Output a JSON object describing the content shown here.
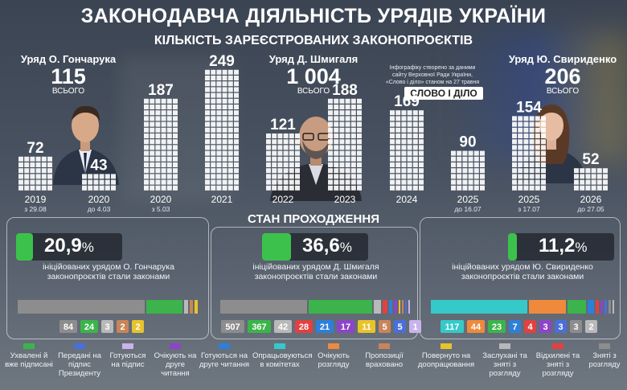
{
  "header": {
    "title": "ЗАКОНОДАВЧА ДІЯЛЬНІСТЬ УРЯДІВ УКРАЇНИ",
    "subtitle": "КІЛЬКІСТЬ ЗАРЕЄСТРОВАНИХ ЗАКОНОПРОЄКТІВ"
  },
  "source": {
    "note": "Інфографіку створено за даними сайту Верховної Ради України, «Слово і діло» станом на 27 травня 2026 року",
    "logo": "СЛОВО І ДІЛО"
  },
  "governments": [
    {
      "name": "Уряд О. Гончарука",
      "total": "115",
      "total_word": "ВСЬОГО"
    },
    {
      "name": "Уряд Д. Шмигаля",
      "total": "1 004",
      "total_word": "ВСЬОГО"
    },
    {
      "name": "Уряд Ю. Свириденко",
      "total": "206",
      "total_word": "ВСЬОГО"
    }
  ],
  "chart_data": {
    "type": "bar",
    "title": "КІЛЬКІСТЬ ЗАРЕЄСТРОВАНИХ ЗАКОНОПРОЄКТІВ",
    "categories": [
      "2019",
      "2020",
      "2020",
      "2021",
      "2022",
      "2023",
      "2024",
      "2025",
      "2025",
      "2026"
    ],
    "sublabels": [
      "з 29.08",
      "до 4.03",
      "з 5.03",
      "",
      "",
      "",
      "",
      "до 16.07",
      "з 17.07",
      "до 27.05"
    ],
    "government": [
      "Уряд О. Гончарука",
      "Уряд О. Гончарука",
      "Уряд Д. Шмигаля",
      "Уряд Д. Шмигаля",
      "Уряд Д. Шмигаля",
      "Уряд Д. Шмигаля",
      "Уряд Д. Шмигаля",
      "Уряд Д. Шмигаля",
      "Уряд Ю. Свириденко",
      "Уряд Ю. Свириденко"
    ],
    "values": [
      72,
      43,
      187,
      249,
      121,
      188,
      169,
      90,
      154,
      52
    ],
    "ylim": [
      0,
      260
    ],
    "grid": false
  },
  "status": {
    "title": "СТАН ПРОХОДЖЕННЯ",
    "blocks": [
      {
        "percent": "20,9",
        "percent_value": 20.9,
        "unit": "%",
        "caption": "ініційованих урядом О. Гончарука законопроєктів стали законами",
        "counts": [
          84,
          24,
          3,
          2,
          2
        ],
        "count_colors": [
          "#8d8d8d",
          "#3cb44b",
          "#b9b9b9",
          "#c98459",
          "#e8c32a"
        ]
      },
      {
        "percent": "36,6",
        "percent_value": 36.6,
        "unit": "%",
        "caption": "ініційованих урядом Д. Шмигаля законопроєктів стали законами",
        "counts": [
          507,
          367,
          42,
          28,
          21,
          17,
          11,
          5,
          5,
          1
        ],
        "count_colors": [
          "#8d8d8d",
          "#3cb44b",
          "#b9b9b9",
          "#e14141",
          "#2e7fd9",
          "#8e44c8",
          "#e8c32a",
          "#c98459",
          "#4a6fd8",
          "#c8b4ea"
        ]
      },
      {
        "percent": "11,2",
        "percent_value": 11.2,
        "unit": "%",
        "caption": "ініційованих урядом Ю. Свириденко законопроєктів стали законами",
        "counts": [
          117,
          44,
          23,
          7,
          4,
          3,
          3,
          3,
          2
        ],
        "count_colors": [
          "#35c9c9",
          "#ef8a3c",
          "#3cb44b",
          "#2e7fd9",
          "#e14141",
          "#8e44c8",
          "#4a6fd8",
          "#8d8d8d",
          "#b9b9b9"
        ]
      }
    ]
  },
  "legend": [
    {
      "label": "Ухвалені й вже підписані",
      "color": "#3cb44b"
    },
    {
      "label": "Передані на підпис Президенту",
      "color": "#4a6fd8"
    },
    {
      "label": "Готуються на підпис",
      "color": "#c8b4ea"
    },
    {
      "label": "Очікують на друге читання",
      "color": "#8e44c8"
    },
    {
      "label": "Готуються на друге читання",
      "color": "#2e7fd9"
    },
    {
      "label": "Опрацьовуються в комітетах",
      "color": "#35c9c9"
    },
    {
      "label": "Очікують розгляду",
      "color": "#ef8a3c"
    },
    {
      "label": "Пропозиції враховано",
      "color": "#c98459"
    },
    {
      "label": "Повернуто на доопрацювання",
      "color": "#e8c32a"
    },
    {
      "label": "Заслухані та зняті з розгляду",
      "color": "#b9b9b9"
    },
    {
      "label": "Відхилені та зняті з розгляду",
      "color": "#e14141"
    },
    {
      "label": "Зняті з розгляду",
      "color": "#8d8d8d"
    }
  ]
}
